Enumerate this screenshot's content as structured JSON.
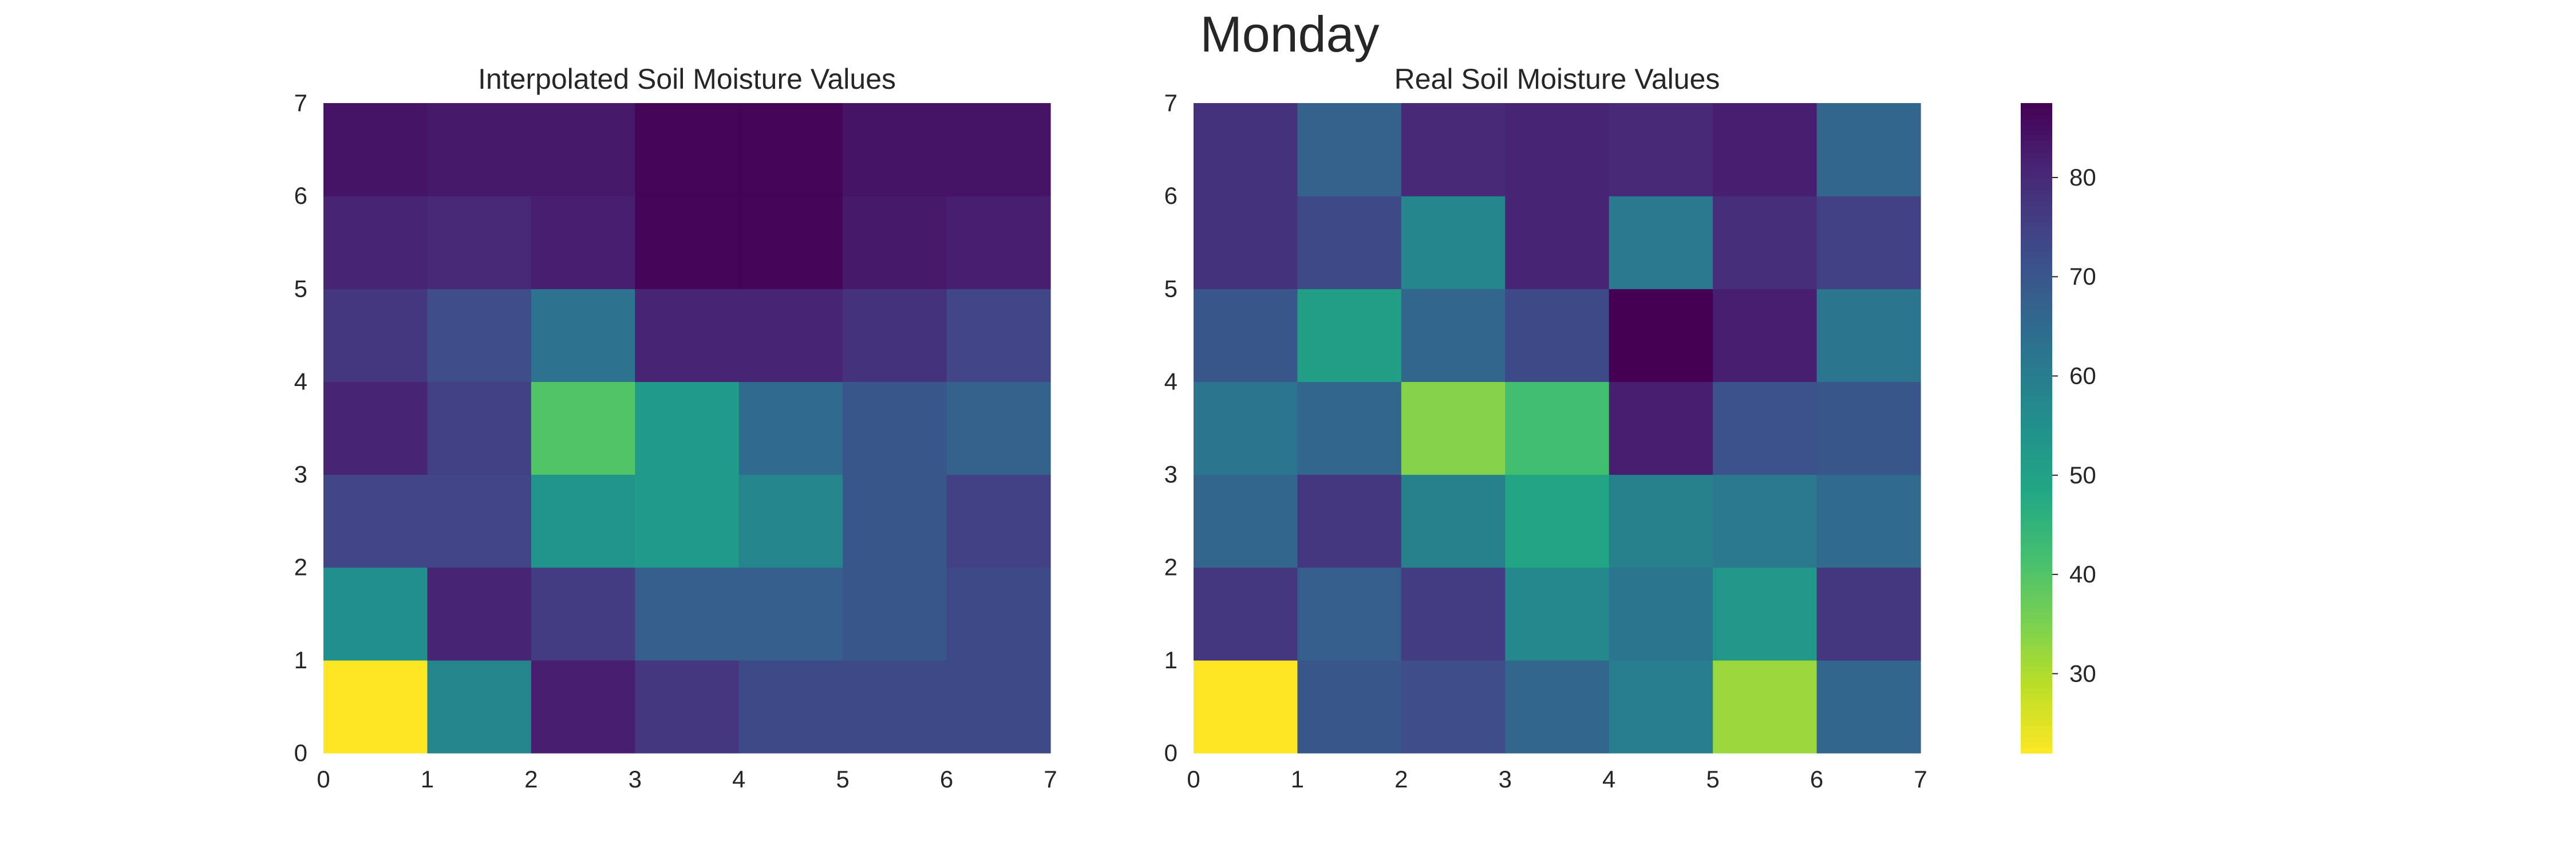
{
  "title": "Monday",
  "chart_data": [
    {
      "type": "heatmap",
      "title": "Interpolated Soil Moisture Values",
      "xlim": [
        0,
        7
      ],
      "ylim": [
        0,
        7
      ],
      "xticks": [
        0,
        1,
        2,
        3,
        4,
        5,
        6,
        7
      ],
      "yticks": [
        0,
        1,
        2,
        3,
        4,
        5,
        6,
        7
      ],
      "rows_bottom_to_top": [
        [
          22,
          58,
          82,
          77,
          73,
          73,
          73
        ],
        [
          55,
          81,
          76,
          68,
          68,
          70,
          73
        ],
        [
          74,
          74,
          54,
          52,
          58,
          70,
          75
        ],
        [
          81,
          75,
          40,
          52,
          65,
          70,
          67
        ],
        [
          77,
          72,
          63,
          81,
          81,
          78,
          74
        ],
        [
          81,
          80,
          82,
          87,
          87,
          83,
          82
        ],
        [
          84,
          83,
          83,
          87,
          87,
          84,
          84
        ]
      ]
    },
    {
      "type": "heatmap",
      "title": "Real Soil Moisture Values",
      "xlim": [
        0,
        7
      ],
      "ylim": [
        0,
        7
      ],
      "xticks": [
        0,
        1,
        2,
        3,
        4,
        5,
        6,
        7
      ],
      "yticks": [
        0,
        1,
        2,
        3,
        4,
        5,
        6,
        7
      ],
      "rows_bottom_to_top": [
        [
          22,
          70,
          72,
          66,
          60,
          32,
          66
        ],
        [
          77,
          68,
          76,
          57,
          62,
          53,
          77
        ],
        [
          66,
          77,
          59,
          49,
          59,
          61,
          65
        ],
        [
          62,
          66,
          34,
          42,
          82,
          71,
          70
        ],
        [
          70,
          51,
          66,
          73,
          88,
          82,
          62
        ],
        [
          78,
          73,
          58,
          81,
          61,
          79,
          75
        ],
        [
          78,
          67,
          80,
          81,
          80,
          82,
          66
        ]
      ]
    }
  ],
  "colorbar": {
    "colormap": "viridis",
    "vmin": 22,
    "vmax": 87.5,
    "ticks": [
      30,
      40,
      50,
      60,
      70,
      80
    ]
  }
}
